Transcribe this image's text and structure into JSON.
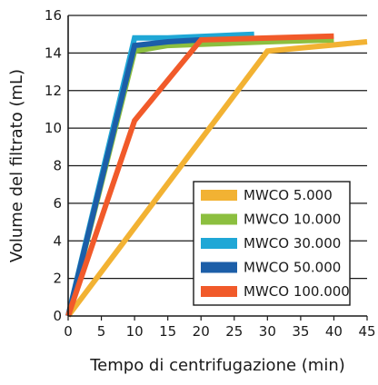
{
  "chart_data": {
    "type": "line",
    "title": "",
    "xlabel": "Tempo di centrifugazione (min)",
    "ylabel": "Volume del filtrato (mL)",
    "xlim": [
      0,
      45
    ],
    "ylim": [
      0,
      16
    ],
    "xticks": [
      0,
      5,
      10,
      15,
      20,
      25,
      30,
      35,
      40,
      45
    ],
    "yticks": [
      0,
      2,
      4,
      6,
      8,
      10,
      12,
      14,
      16
    ],
    "grid": "horizontal",
    "legend_position": "bottom-right",
    "series": [
      {
        "name": "MWCO 5.000",
        "color": "#f2b233",
        "x": [
          0,
          30,
          45
        ],
        "y": [
          0,
          14.1,
          14.6
        ]
      },
      {
        "name": "MWCO 10.000",
        "color": "#8cbf3f",
        "x": [
          0,
          10,
          15,
          30,
          40
        ],
        "y": [
          0,
          14.1,
          14.4,
          14.6,
          14.7
        ]
      },
      {
        "name": "MWCO 30.000",
        "color": "#1fa7d6",
        "x": [
          0,
          10,
          15,
          28
        ],
        "y": [
          0,
          14.8,
          14.8,
          15.0
        ]
      },
      {
        "name": "MWCO 50.000",
        "color": "#1c5ea8",
        "x": [
          0,
          10,
          15,
          20
        ],
        "y": [
          0,
          14.4,
          14.6,
          14.7
        ]
      },
      {
        "name": "MWCO 100.000",
        "color": "#f15a2a",
        "x": [
          0,
          10,
          20,
          40
        ],
        "y": [
          0,
          10.4,
          14.7,
          14.9
        ]
      }
    ]
  }
}
